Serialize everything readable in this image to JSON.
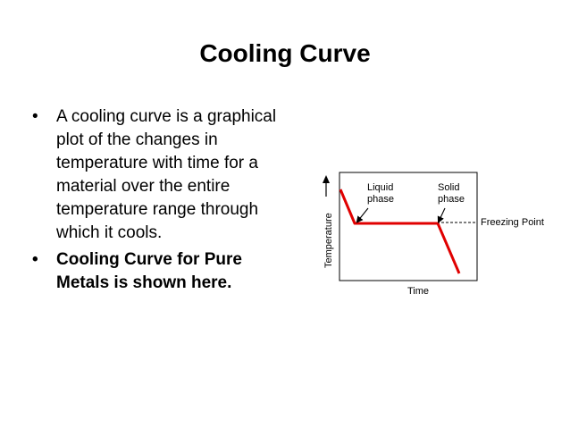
{
  "slide": {
    "title": "Cooling Curve",
    "bullets": [
      {
        "text": "A  cooling curve is a graphical plot of the changes in temperature with time for a material over the entire temperature range through which it cools.",
        "bold": false
      },
      {
        "text": "Cooling Curve for Pure Metals is shown here.",
        "bold": true
      }
    ]
  },
  "diagram": {
    "ylabel": "Temperature",
    "xlabel": "Time",
    "liquid_label_line1": "Liquid",
    "liquid_label_line2": "phase",
    "solid_label_line1": "Solid",
    "solid_label_line2": "phase",
    "freezing_label": "Freezing Point",
    "curve_color": "#e00000"
  }
}
